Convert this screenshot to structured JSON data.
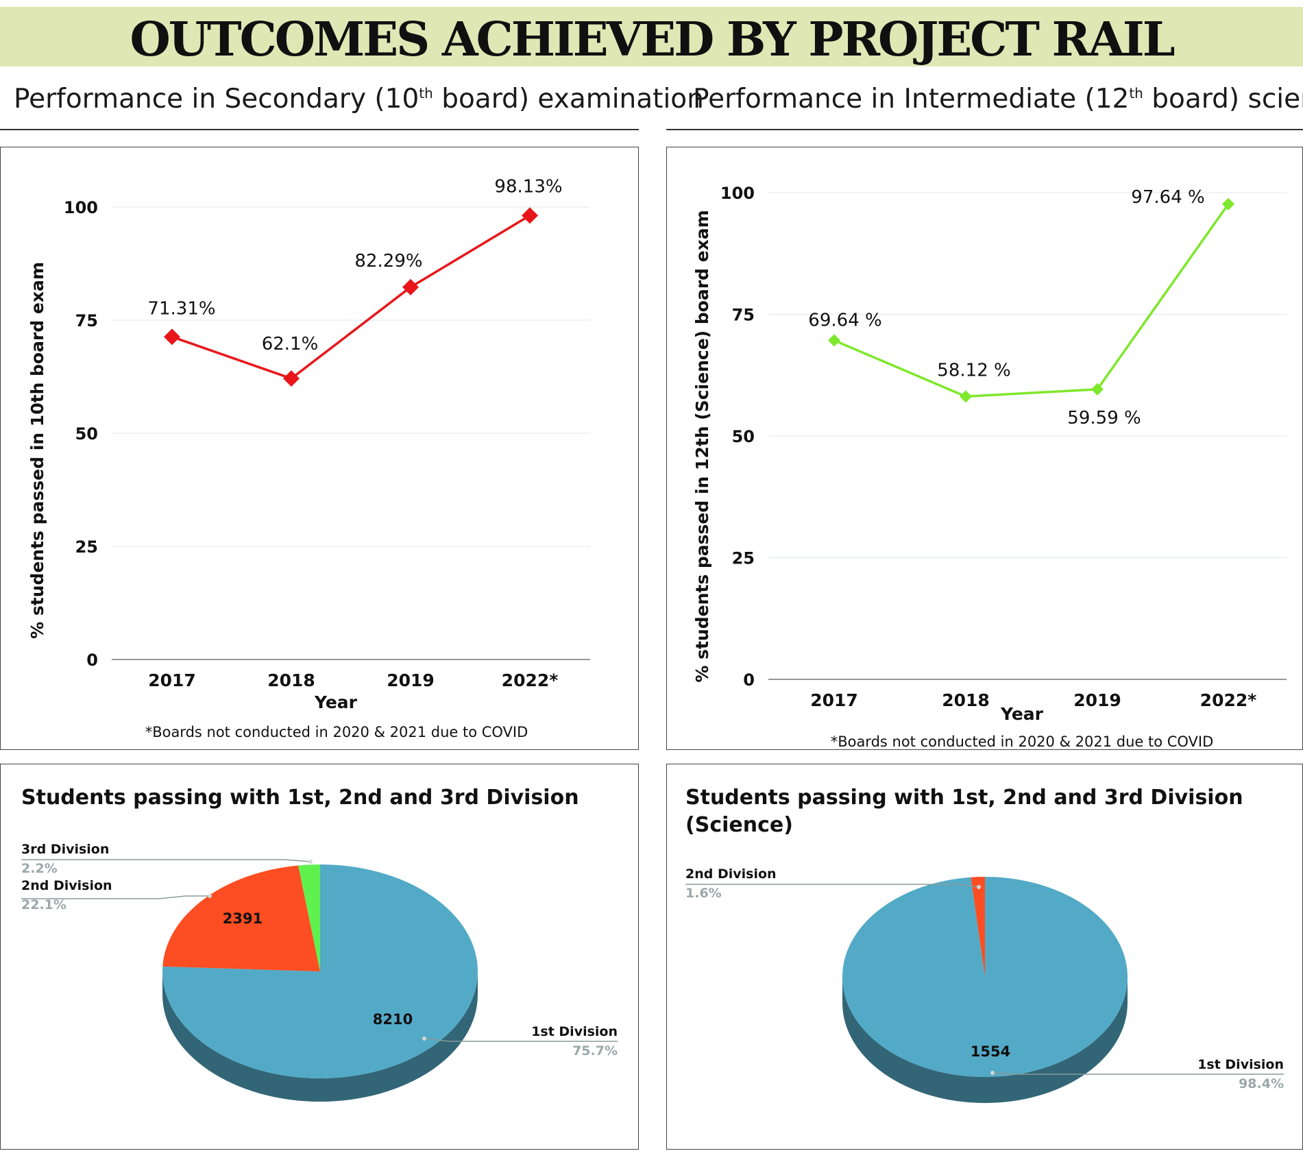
{
  "banner": {
    "title": "OUTCOMES ACHIEVED BY PROJECT RAIL",
    "color": "#dfe8b5"
  },
  "sections": {
    "secondary": {
      "title_pre": "Performance in Secondary (10",
      "title_sup": "th",
      "title_post": " board) examination"
    },
    "intermediate": {
      "title_pre": "Performance in Intermediate (12",
      "title_sup": "th",
      "title_post": " board) science"
    }
  },
  "chart_data": [
    {
      "type": "line",
      "categories": [
        "2017",
        "2018",
        "2019",
        "2022*"
      ],
      "series": [
        {
          "values": [
            71.31,
            62.1,
            82.29,
            98.13
          ],
          "labels": [
            "71.31%",
            "62.1%",
            "82.29%",
            "98.13%"
          ],
          "color": "#e8161a"
        }
      ],
      "xlabel": "Year",
      "ylabel": "% students passed in 10th board exam",
      "ylim": [
        0,
        100
      ],
      "yticks": [
        "0",
        "25",
        "50",
        "75",
        "100"
      ],
      "grid": true,
      "note": "*Boards not conducted in 2020 & 2021 due to COVID"
    },
    {
      "type": "line",
      "categories": [
        "2017",
        "2018",
        "2019",
        "2022*"
      ],
      "series": [
        {
          "values": [
            69.64,
            58.12,
            59.59,
            97.64
          ],
          "labels": [
            "69.64 %",
            "58.12 %",
            "59.59 %",
            "97.64 %"
          ],
          "color": "#7ee82c"
        }
      ],
      "xlabel": "Year",
      "ylabel": "% students passed in 12th (Science) board exam",
      "ylim": [
        0,
        100
      ],
      "yticks": [
        "0",
        "25",
        "50",
        "75",
        "100"
      ],
      "grid": true,
      "note": "*Boards not conducted in 2020 & 2021 due to COVID"
    },
    {
      "type": "pie",
      "title": "Students passing with 1st, 2nd and 3rd Division",
      "slices": [
        {
          "name": "1st Division",
          "value": 8210,
          "percent": "75.7%",
          "color": "#53aac6"
        },
        {
          "name": "2nd Division",
          "value": 2391,
          "percent": "22.1%",
          "color": "#fd4d22"
        },
        {
          "name": "3rd Division",
          "value": 240,
          "percent": "2.2%",
          "color": "#5ff24f"
        }
      ],
      "value_labels": [
        "8210",
        "2391"
      ]
    },
    {
      "type": "pie",
      "title_line1": "Students passing with 1st, 2nd and 3rd Division",
      "title_line2": "(Science)",
      "slices": [
        {
          "name": "1st Division",
          "value": 1554,
          "percent": "98.4%",
          "color": "#53aac6"
        },
        {
          "name": "2nd Division",
          "value": 25,
          "percent": "1.6%",
          "color": "#fd4d22"
        }
      ],
      "value_labels": [
        "1554"
      ]
    }
  ]
}
